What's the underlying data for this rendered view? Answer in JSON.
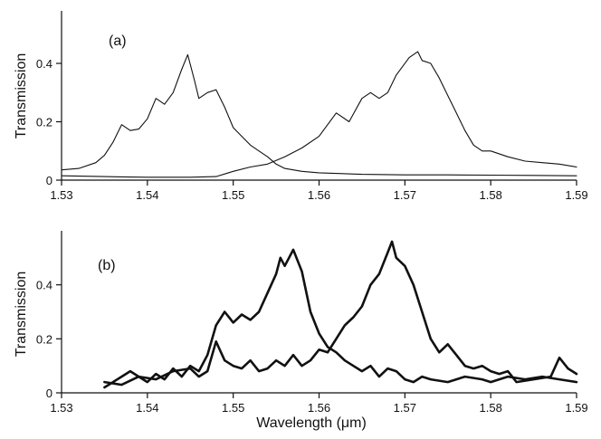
{
  "chart_data": [
    {
      "type": "line",
      "panel_label": "(a)",
      "xlabel": "",
      "ylabel": "Transmission",
      "xlim": [
        1.53,
        1.59
      ],
      "ylim": [
        0,
        0.58
      ],
      "xticks": [
        "1.53",
        "1.54",
        "1.55",
        "1.56",
        "1.57",
        "1.58",
        "1.59"
      ],
      "yticks": [
        "0",
        "0.2",
        "0.4"
      ],
      "line_weight": "thin",
      "series": [
        {
          "points": [
            [
              1.53,
              0.035
            ],
            [
              1.532,
              0.04
            ],
            [
              1.534,
              0.06
            ],
            [
              1.535,
              0.085
            ],
            [
              1.536,
              0.13
            ],
            [
              1.537,
              0.19
            ],
            [
              1.538,
              0.17
            ],
            [
              1.539,
              0.175
            ],
            [
              1.54,
              0.21
            ],
            [
              1.541,
              0.28
            ],
            [
              1.542,
              0.26
            ],
            [
              1.543,
              0.3
            ],
            [
              1.544,
              0.38
            ],
            [
              1.5447,
              0.43
            ],
            [
              1.5455,
              0.34
            ],
            [
              1.546,
              0.28
            ],
            [
              1.547,
              0.3
            ],
            [
              1.548,
              0.31
            ],
            [
              1.549,
              0.25
            ],
            [
              1.55,
              0.18
            ],
            [
              1.551,
              0.15
            ],
            [
              1.552,
              0.12
            ],
            [
              1.553,
              0.1
            ],
            [
              1.554,
              0.08
            ],
            [
              1.555,
              0.055
            ],
            [
              1.556,
              0.04
            ],
            [
              1.558,
              0.03
            ],
            [
              1.56,
              0.025
            ],
            [
              1.565,
              0.02
            ],
            [
              1.57,
              0.018
            ],
            [
              1.575,
              0.018
            ],
            [
              1.58,
              0.017
            ],
            [
              1.585,
              0.016
            ],
            [
              1.59,
              0.015
            ]
          ]
        },
        {
          "points": [
            [
              1.53,
              0.015
            ],
            [
              1.535,
              0.012
            ],
            [
              1.54,
              0.01
            ],
            [
              1.545,
              0.01
            ],
            [
              1.548,
              0.012
            ],
            [
              1.55,
              0.03
            ],
            [
              1.552,
              0.045
            ],
            [
              1.554,
              0.055
            ],
            [
              1.556,
              0.08
            ],
            [
              1.558,
              0.11
            ],
            [
              1.56,
              0.15
            ],
            [
              1.562,
              0.23
            ],
            [
              1.5635,
              0.2
            ],
            [
              1.565,
              0.28
            ],
            [
              1.566,
              0.3
            ],
            [
              1.567,
              0.28
            ],
            [
              1.568,
              0.3
            ],
            [
              1.569,
              0.36
            ],
            [
              1.5705,
              0.42
            ],
            [
              1.5715,
              0.44
            ],
            [
              1.572,
              0.41
            ],
            [
              1.573,
              0.4
            ],
            [
              1.574,
              0.35
            ],
            [
              1.575,
              0.29
            ],
            [
              1.576,
              0.23
            ],
            [
              1.577,
              0.17
            ],
            [
              1.578,
              0.12
            ],
            [
              1.579,
              0.1
            ],
            [
              1.58,
              0.1
            ],
            [
              1.582,
              0.08
            ],
            [
              1.584,
              0.065
            ],
            [
              1.586,
              0.06
            ],
            [
              1.588,
              0.055
            ],
            [
              1.59,
              0.045
            ]
          ]
        }
      ]
    },
    {
      "type": "line",
      "panel_label": "(b)",
      "xlabel": "Wavelength (μm)",
      "ylabel": "Transmission",
      "xlim": [
        1.53,
        1.59
      ],
      "ylim": [
        0,
        0.6
      ],
      "xticks": [
        "1.53",
        "1.54",
        "1.55",
        "1.56",
        "1.57",
        "1.58",
        "1.59"
      ],
      "yticks": [
        "0",
        "0.2",
        "0.4"
      ],
      "line_weight": "thick",
      "series": [
        {
          "points": [
            [
              1.535,
              0.02
            ],
            [
              1.536,
              0.04
            ],
            [
              1.537,
              0.06
            ],
            [
              1.538,
              0.08
            ],
            [
              1.539,
              0.06
            ],
            [
              1.54,
              0.04
            ],
            [
              1.541,
              0.07
            ],
            [
              1.542,
              0.05
            ],
            [
              1.543,
              0.09
            ],
            [
              1.544,
              0.06
            ],
            [
              1.545,
              0.1
            ],
            [
              1.546,
              0.08
            ],
            [
              1.547,
              0.14
            ],
            [
              1.548,
              0.25
            ],
            [
              1.549,
              0.3
            ],
            [
              1.55,
              0.26
            ],
            [
              1.551,
              0.29
            ],
            [
              1.552,
              0.27
            ],
            [
              1.553,
              0.3
            ],
            [
              1.554,
              0.37
            ],
            [
              1.555,
              0.44
            ],
            [
              1.5555,
              0.5
            ],
            [
              1.556,
              0.47
            ],
            [
              1.557,
              0.53
            ],
            [
              1.558,
              0.45
            ],
            [
              1.559,
              0.3
            ],
            [
              1.56,
              0.22
            ],
            [
              1.561,
              0.17
            ],
            [
              1.562,
              0.15
            ],
            [
              1.563,
              0.12
            ],
            [
              1.564,
              0.1
            ],
            [
              1.565,
              0.08
            ],
            [
              1.566,
              0.1
            ],
            [
              1.567,
              0.06
            ],
            [
              1.568,
              0.09
            ],
            [
              1.569,
              0.08
            ],
            [
              1.57,
              0.05
            ],
            [
              1.571,
              0.04
            ],
            [
              1.572,
              0.06
            ],
            [
              1.573,
              0.05
            ],
            [
              1.575,
              0.04
            ],
            [
              1.577,
              0.06
            ],
            [
              1.579,
              0.05
            ],
            [
              1.58,
              0.04
            ],
            [
              1.582,
              0.06
            ],
            [
              1.584,
              0.05
            ],
            [
              1.586,
              0.06
            ],
            [
              1.588,
              0.05
            ],
            [
              1.59,
              0.04
            ]
          ]
        },
        {
          "points": [
            [
              1.535,
              0.04
            ],
            [
              1.537,
              0.03
            ],
            [
              1.539,
              0.06
            ],
            [
              1.541,
              0.05
            ],
            [
              1.543,
              0.08
            ],
            [
              1.545,
              0.09
            ],
            [
              1.546,
              0.06
            ],
            [
              1.547,
              0.08
            ],
            [
              1.548,
              0.19
            ],
            [
              1.549,
              0.12
            ],
            [
              1.55,
              0.1
            ],
            [
              1.551,
              0.09
            ],
            [
              1.552,
              0.12
            ],
            [
              1.553,
              0.08
            ],
            [
              1.554,
              0.09
            ],
            [
              1.555,
              0.12
            ],
            [
              1.556,
              0.1
            ],
            [
              1.557,
              0.14
            ],
            [
              1.558,
              0.1
            ],
            [
              1.559,
              0.12
            ],
            [
              1.56,
              0.16
            ],
            [
              1.561,
              0.15
            ],
            [
              1.562,
              0.2
            ],
            [
              1.563,
              0.25
            ],
            [
              1.564,
              0.28
            ],
            [
              1.565,
              0.32
            ],
            [
              1.566,
              0.4
            ],
            [
              1.567,
              0.44
            ],
            [
              1.568,
              0.52
            ],
            [
              1.5685,
              0.56
            ],
            [
              1.569,
              0.5
            ],
            [
              1.57,
              0.47
            ],
            [
              1.571,
              0.4
            ],
            [
              1.572,
              0.3
            ],
            [
              1.573,
              0.2
            ],
            [
              1.574,
              0.15
            ],
            [
              1.575,
              0.18
            ],
            [
              1.576,
              0.14
            ],
            [
              1.577,
              0.1
            ],
            [
              1.578,
              0.09
            ],
            [
              1.579,
              0.1
            ],
            [
              1.58,
              0.08
            ],
            [
              1.581,
              0.07
            ],
            [
              1.582,
              0.08
            ],
            [
              1.583,
              0.04
            ],
            [
              1.585,
              0.05
            ],
            [
              1.587,
              0.06
            ],
            [
              1.588,
              0.13
            ],
            [
              1.589,
              0.09
            ],
            [
              1.59,
              0.07
            ]
          ]
        }
      ]
    }
  ]
}
